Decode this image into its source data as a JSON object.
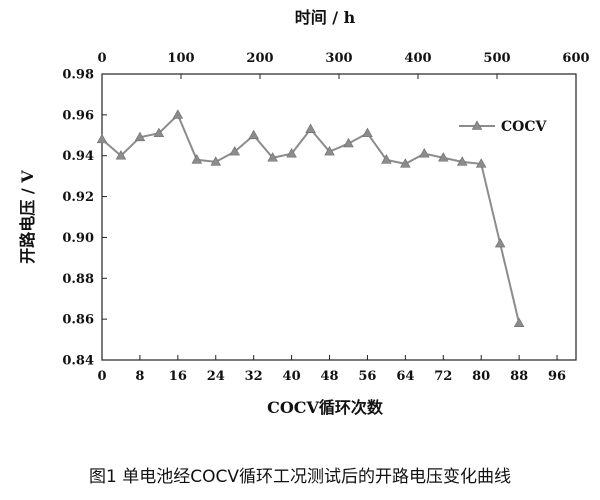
{
  "caption": "图1 单电池经COCV循环工况测试后的开路电压变化曲线",
  "chart_data": {
    "type": "line",
    "title": "",
    "xlabel": "COCV循环次数",
    "ylabel": "开路电压 / V",
    "x2label": "时间 / h",
    "xlim": [
      0,
      100
    ],
    "ylim": [
      0.84,
      0.98
    ],
    "x2lim": [
      0,
      600
    ],
    "xticks": [
      "0",
      "8",
      "16",
      "24",
      "32",
      "40",
      "48",
      "56",
      "64",
      "72",
      "80",
      "88",
      "96"
    ],
    "yticks": [
      "0.84",
      "0.86",
      "0.88",
      "0.90",
      "0.92",
      "0.94",
      "0.96",
      "0.98"
    ],
    "x2ticks": [
      "0",
      "100",
      "200",
      "300",
      "400",
      "500",
      "600"
    ],
    "legend_position": "top-right",
    "grid": false,
    "series": [
      {
        "name": "COCV",
        "color": "#8c8c8c",
        "marker": "triangle",
        "x": [
          0,
          4,
          8,
          12,
          16,
          20,
          24,
          28,
          32,
          36,
          40,
          44,
          48,
          52,
          56,
          60,
          64,
          68,
          72,
          76,
          80,
          84,
          88
        ],
        "y": [
          0.948,
          0.94,
          0.949,
          0.951,
          0.96,
          0.938,
          0.937,
          0.942,
          0.95,
          0.939,
          0.941,
          0.953,
          0.942,
          0.946,
          0.951,
          0.938,
          0.936,
          0.941,
          0.939,
          0.937,
          0.936,
          0.897,
          0.858
        ]
      }
    ]
  }
}
